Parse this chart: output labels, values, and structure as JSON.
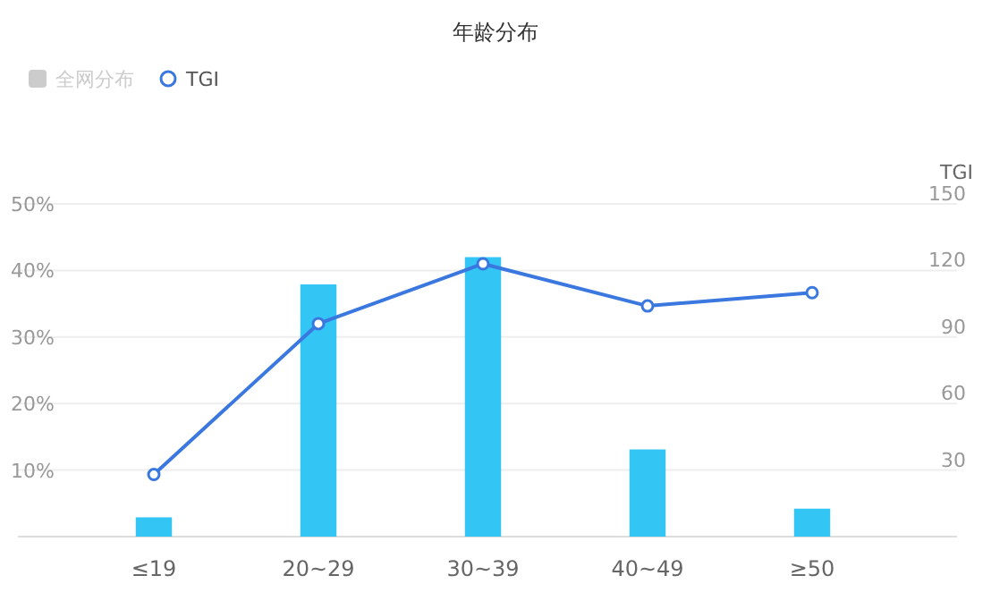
{
  "chart_data": {
    "type": "bar",
    "title": "年龄分布",
    "categories": [
      "≤19",
      "20~29",
      "30~39",
      "40~49",
      "≥50"
    ],
    "series": [
      {
        "color": "#33c5f3",
        "values": [
          2.9,
          37.9,
          42.0,
          13.1,
          4.2
        ]
      },
      {
        "name": "全网分布",
        "color": "#cccccc",
        "values": [
          null,
          null,
          null,
          null,
          null
        ]
      },
      {
        "name": "TGI",
        "type": "line",
        "axis": "y2",
        "color": "#3a78e0",
        "marker": "circle",
        "values": [
          28,
          96,
          123,
          104,
          110
        ]
      }
    ],
    "ylim": [
      0,
      50
    ],
    "yticks": [
      {
        "value": 0,
        "label": null
      },
      {
        "value": 10,
        "label": "10%"
      },
      {
        "value": 20,
        "label": "20%"
      },
      {
        "value": 30,
        "label": "30%"
      },
      {
        "value": 40,
        "label": "40%"
      },
      {
        "value": 50,
        "label": "50%"
      }
    ],
    "y2label": "TGI",
    "y2lim": [
      0,
      150
    ],
    "y2ticks": [
      30,
      60,
      90,
      120,
      150
    ],
    "grid": "y",
    "legend": "top left"
  }
}
